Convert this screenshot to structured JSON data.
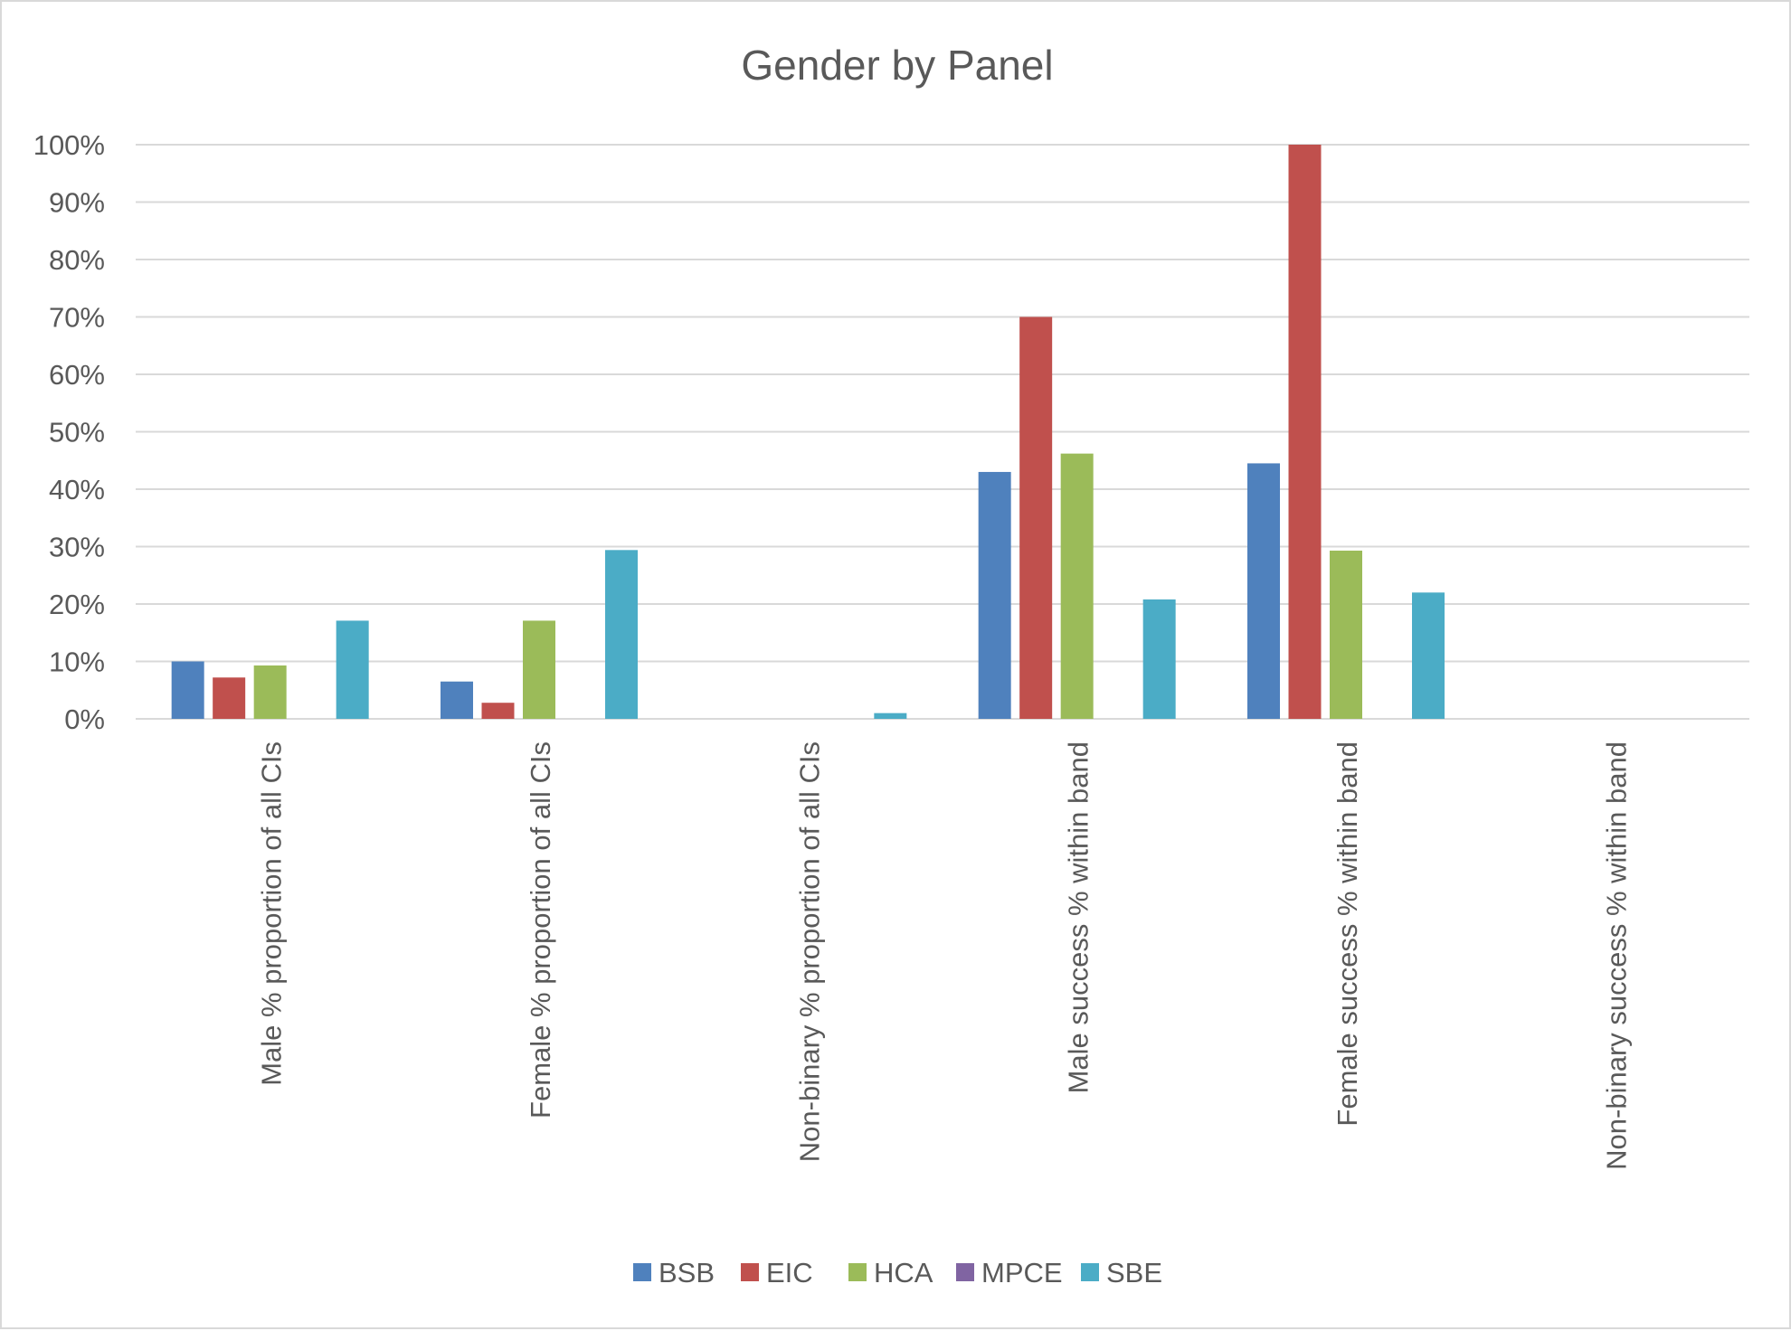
{
  "chart_data": {
    "type": "bar",
    "title": "Gender by Panel",
    "xlabel": "",
    "ylabel": "",
    "ylim": [
      0,
      100
    ],
    "yticks": [
      "0%",
      "10%",
      "20%",
      "30%",
      "40%",
      "50%",
      "60%",
      "70%",
      "80%",
      "90%",
      "100%"
    ],
    "grid": true,
    "legend_position": "bottom",
    "categories": [
      "Male % proportion of all CIs",
      "Female % proportion of all CIs",
      "Non-binary % proportion of all CIs",
      "Male success % within band",
      "Female success % within band",
      "Non-binary success % within band"
    ],
    "series": [
      {
        "name": "BSB",
        "color": "#4f81bd",
        "values": [
          10,
          6.5,
          0,
          43,
          44.5,
          0
        ]
      },
      {
        "name": "EIC",
        "color": "#c0504d",
        "values": [
          7.2,
          2.8,
          0,
          70,
          100,
          0
        ]
      },
      {
        "name": "HCA",
        "color": "#9bbb59",
        "values": [
          9.3,
          17.1,
          0,
          46.2,
          29.3,
          0
        ]
      },
      {
        "name": "MPCE",
        "color": "#8064a2",
        "values": [
          0,
          0,
          0,
          0,
          0,
          0
        ]
      },
      {
        "name": "SBE",
        "color": "#4bacc6",
        "values": [
          17.1,
          29.4,
          1,
          20.8,
          22,
          0
        ]
      }
    ]
  }
}
